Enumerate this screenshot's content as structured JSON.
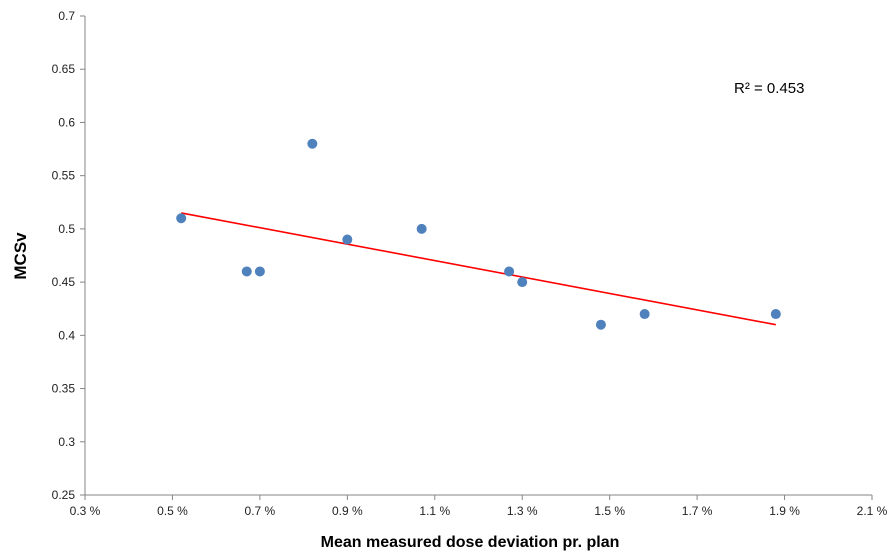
{
  "chart_data": {
    "type": "scatter",
    "title": "",
    "xlabel": "Mean measured dose deviation pr. plan",
    "ylabel": "MCSv",
    "xlim": [
      0.3,
      2.1
    ],
    "ylim": [
      0.25,
      0.7
    ],
    "x_ticks": [
      0.3,
      0.5,
      0.7,
      0.9,
      1.1,
      1.3,
      1.5,
      1.7,
      1.9,
      2.1
    ],
    "x_tick_labels": [
      "0.3 %",
      "0.5 %",
      "0.7 %",
      "0.9 %",
      "1.1 %",
      "1.3 %",
      "1.5 %",
      "1.7 %",
      "1.9 %",
      "2.1 %"
    ],
    "y_ticks": [
      0.25,
      0.3,
      0.35,
      0.4,
      0.45,
      0.5,
      0.55,
      0.6,
      0.65,
      0.7
    ],
    "y_tick_labels": [
      "0.25",
      "0.3",
      "0.35",
      "0.4",
      "0.45",
      "0.5",
      "0.55",
      "0.6",
      "0.65",
      "0.7"
    ],
    "grid": false,
    "legend": "none",
    "series": [
      {
        "x": [
          0.52,
          0.67,
          0.7,
          0.82,
          0.9,
          1.07,
          1.27,
          1.3,
          1.48,
          1.58,
          1.88
        ],
        "y": [
          0.51,
          0.46,
          0.46,
          0.58,
          0.49,
          0.5,
          0.46,
          0.45,
          0.41,
          0.42,
          0.42
        ],
        "color": "#4F81BD"
      }
    ],
    "trendline": {
      "type": "linear",
      "x": [
        0.52,
        1.88
      ],
      "y": [
        0.515,
        0.41
      ],
      "color": "#FF0000"
    },
    "annotation": "R² = 0.453"
  }
}
